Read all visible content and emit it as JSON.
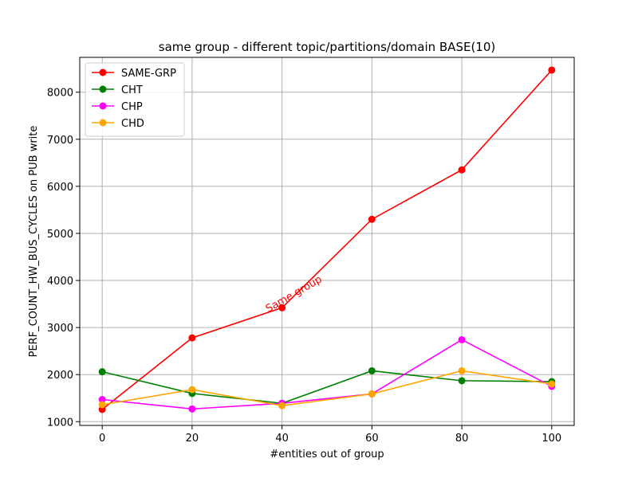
{
  "chart_data": {
    "type": "line",
    "title": "same group - different topic/partitions/domain BASE(10)",
    "xlabel": "#entities out of group",
    "ylabel": "PERF_COUNT_HW_BUS_CYCLES on PUB write",
    "x": [
      0,
      20,
      40,
      60,
      80,
      100
    ],
    "xlim": [
      -5,
      105
    ],
    "ylim": [
      920,
      8740
    ],
    "xticks": [
      0,
      20,
      40,
      60,
      80,
      100
    ],
    "yticks": [
      1000,
      2000,
      3000,
      4000,
      5000,
      6000,
      7000,
      8000
    ],
    "grid": true,
    "legend_position": "top-left",
    "series": [
      {
        "name": "SAME-GRP",
        "color": "#ff0000",
        "values": [
          1260,
          2780,
          3420,
          5300,
          6350,
          8470
        ]
      },
      {
        "name": "CHT",
        "color": "#008000",
        "values": [
          2060,
          1600,
          1390,
          2080,
          1870,
          1850
        ]
      },
      {
        "name": "CHP",
        "color": "#ff00ff",
        "values": [
          1470,
          1270,
          1390,
          1590,
          2740,
          1750
        ]
      },
      {
        "name": "CHD",
        "color": "#ffa500",
        "values": [
          1360,
          1680,
          1340,
          1590,
          2080,
          1800
        ]
      }
    ],
    "annotations": [
      {
        "text": "Same group",
        "x": 40,
        "y": 3420,
        "color": "#ff0000",
        "rotation": -30
      }
    ]
  }
}
